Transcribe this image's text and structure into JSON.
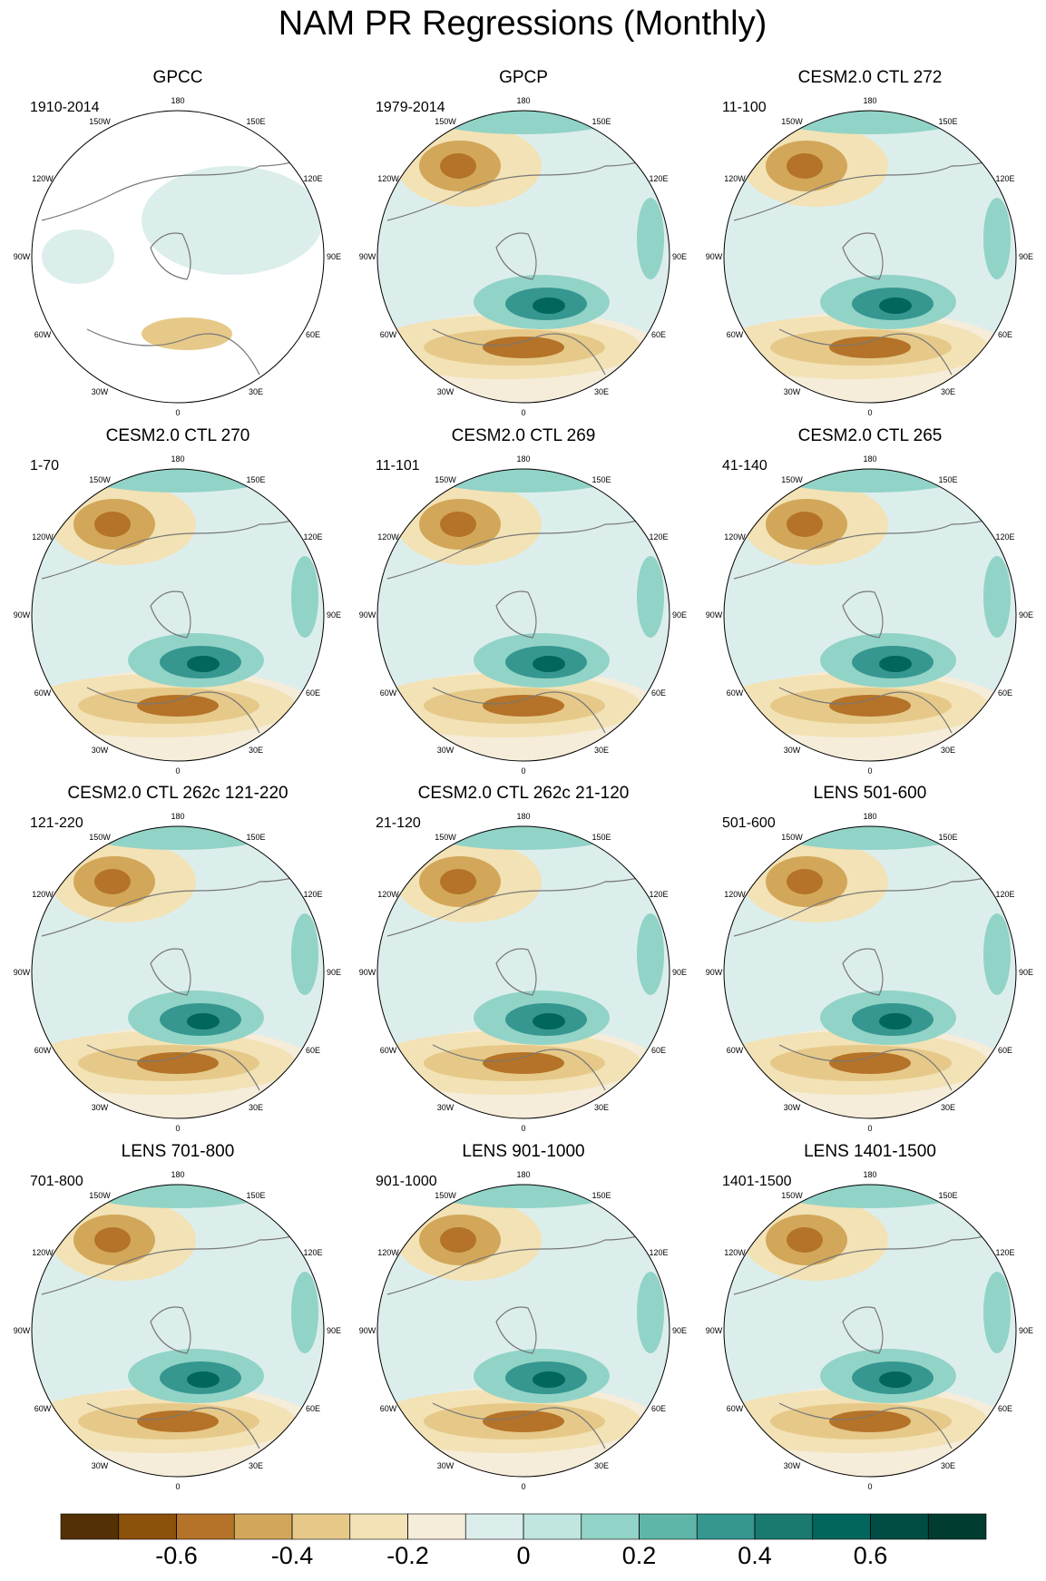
{
  "title": "NAM PR Regressions (Monthly)",
  "panels": [
    {
      "title": "GPCC",
      "period": "1910-2014"
    },
    {
      "title": "GPCP",
      "period": "1979-2014"
    },
    {
      "title": "CESM2.0 CTL 272",
      "period": "11-100"
    },
    {
      "title": "CESM2.0 CTL 270",
      "period": "1-70"
    },
    {
      "title": "CESM2.0 CTL 269",
      "period": "11-101"
    },
    {
      "title": "CESM2.0 CTL 265",
      "period": "41-140"
    },
    {
      "title": "CESM2.0 CTL 262c 121-220",
      "period": "121-220"
    },
    {
      "title": "CESM2.0 CTL 262c 21-120",
      "period": "21-120"
    },
    {
      "title": "LENS 501-600",
      "period": "501-600"
    },
    {
      "title": "LENS 701-800",
      "period": "701-800"
    },
    {
      "title": "LENS 901-1000",
      "period": "901-1000"
    },
    {
      "title": "LENS 1401-1500",
      "period": "1401-1500"
    }
  ],
  "lon_labels": [
    "180",
    "150E",
    "120E",
    "90E",
    "60E",
    "30E",
    "0",
    "30W",
    "60W",
    "90W",
    "120W",
    "150W"
  ],
  "colorbar": {
    "levels": [
      -0.7,
      -0.6,
      -0.5,
      -0.4,
      -0.3,
      -0.2,
      -0.1,
      0,
      0.1,
      0.2,
      0.3,
      0.4,
      0.5,
      0.6,
      0.7
    ],
    "colors": [
      "#543005",
      "#8c510a",
      "#b47328",
      "#d2a75a",
      "#e6c989",
      "#f2e2b5",
      "#f5ecd9",
      "#dceeec",
      "#c0e6df",
      "#92d3c7",
      "#5fb5a8",
      "#35978f",
      "#1a7a70",
      "#01665e",
      "#014d44",
      "#003c30"
    ],
    "ticks": [
      -0.6,
      -0.4,
      -0.2,
      0,
      0.2,
      0.4,
      0.6
    ]
  }
}
